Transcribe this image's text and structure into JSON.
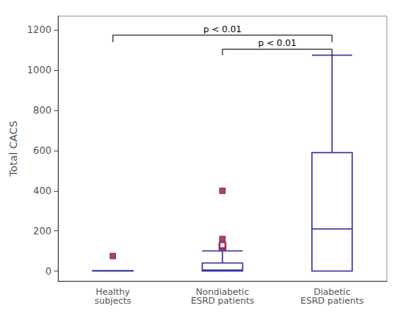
{
  "chart_data": {
    "type": "box",
    "ylabel": "Total CACS",
    "categories": [
      "Healthy\nsubjects",
      "Nondiabetic\nESRD patients",
      "Diabetic\nESRD patients"
    ],
    "color": "#3535a0",
    "boxes": [
      {
        "q1": 0,
        "med": 0,
        "q3": 2,
        "whislo": 0,
        "whishi": 0
      },
      {
        "q1": 0,
        "med": 5,
        "q3": 40,
        "whislo": 0,
        "whishi": 100
      },
      {
        "q1": 0,
        "med": 210,
        "q3": 590,
        "whislo": 0,
        "whishi": 1075
      }
    ],
    "fliers": {
      "values": [
        [
          75
        ],
        [
          160,
          400
        ],
        []
      ],
      "marker": "square",
      "color": "#8b1a4a"
    },
    "hollow_outliers": {
      "values": [
        [],
        [
          120,
          125,
          130
        ],
        []
      ],
      "marker": "hollow square",
      "color": "#8b1a4a"
    },
    "brackets": [
      {
        "from": "Healthy\nsubjects",
        "to": "Diabetic\nESRD patients",
        "y": 1175,
        "drop": 35,
        "label": "p < 0.01"
      },
      {
        "from": "Nondiabetic\nESRD patients",
        "to": "Diabetic\nESRD patients",
        "y": 1105,
        "drop": 30,
        "label": "p < 0.01"
      }
    ],
    "ylim": [
      -50,
      1270
    ],
    "yticks": [
      0,
      200,
      400,
      600,
      800,
      1000,
      1200
    ],
    "grid": false
  }
}
